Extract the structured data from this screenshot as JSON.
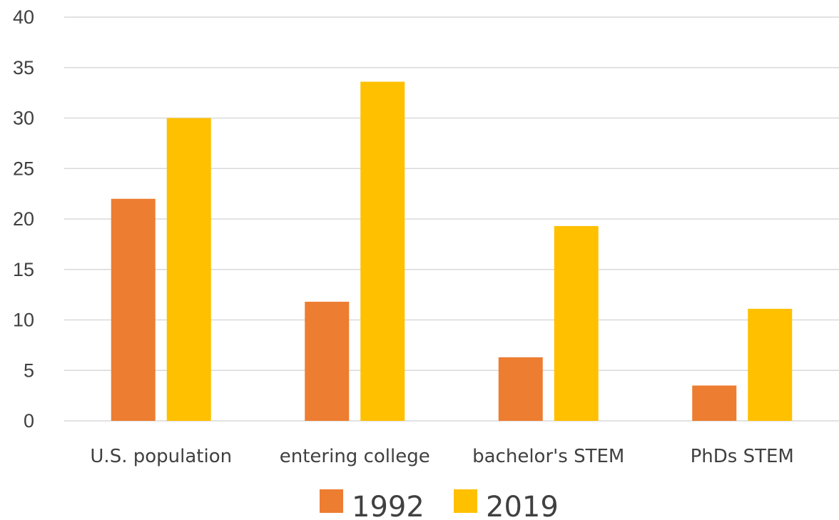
{
  "chart_data": {
    "type": "bar",
    "title": "",
    "xlabel": "",
    "ylabel": "",
    "categories": [
      "U.S. population",
      "entering college",
      "bachelor's STEM",
      "PhDs STEM"
    ],
    "series": [
      {
        "name": "1992",
        "values": [
          22,
          11.8,
          6.3,
          3.5
        ],
        "color": "#ED7D31"
      },
      {
        "name": "2019",
        "values": [
          30,
          33.6,
          19.3,
          11.1
        ],
        "color": "#FFC000"
      }
    ],
    "ylim": [
      0,
      40
    ],
    "yticks": [
      "0",
      "5",
      "10",
      "15",
      "20",
      "25",
      "30",
      "35",
      "40"
    ],
    "grid": true,
    "legend_position": "bottom"
  }
}
